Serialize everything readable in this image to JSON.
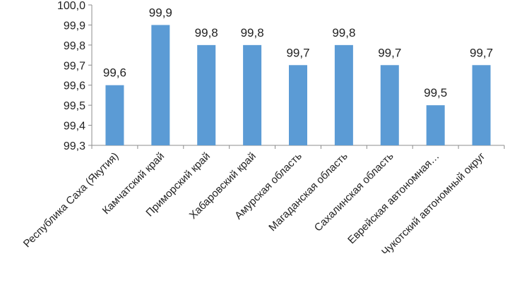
{
  "chart_data": {
    "type": "bar",
    "title": "",
    "xlabel": "",
    "ylabel": "",
    "categories": [
      "Республика Саха (Якутия)",
      "Камчатский край",
      "Приморский край",
      "Хабаровский край",
      "Амурская область",
      "Магаданская область",
      "Сахалинская область",
      "Еврейская автономная…",
      "Чукотский автономный округ"
    ],
    "values": [
      99.6,
      99.9,
      99.8,
      99.8,
      99.7,
      99.8,
      99.7,
      99.5,
      99.7
    ],
    "value_labels": [
      "99,6",
      "99,9",
      "99,8",
      "99,8",
      "99,7",
      "99,8",
      "99,7",
      "99,5",
      "99,7"
    ],
    "ylim": [
      99.3,
      100.0
    ],
    "y_ticks": [
      99.3,
      99.4,
      99.5,
      99.6,
      99.7,
      99.8,
      99.9,
      100.0
    ],
    "y_tick_labels": [
      "99,3",
      "99,4",
      "99,5",
      "99,6",
      "99,7",
      "99,8",
      "99,9",
      "100,0"
    ],
    "grid": false,
    "legend": "none",
    "bar_color": "#5b9bd5"
  }
}
